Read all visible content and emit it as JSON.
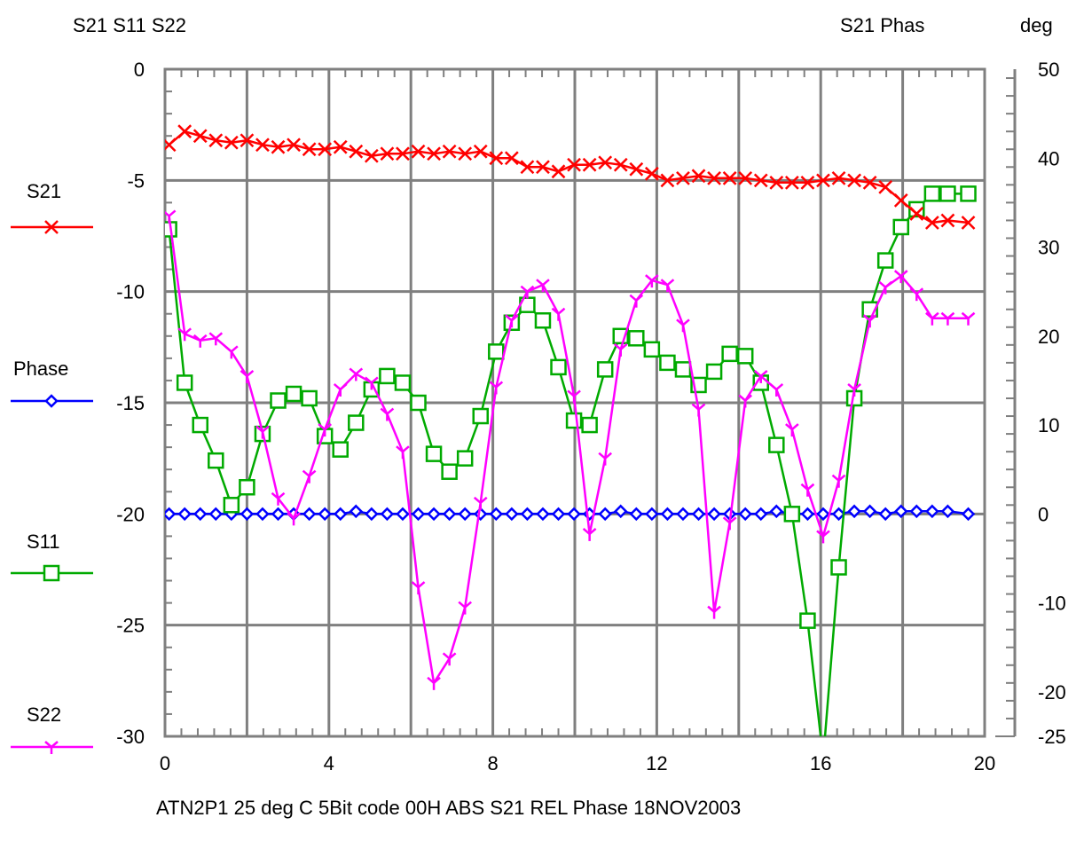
{
  "header": {
    "left_axis_title": "S21 S11 S22",
    "right_axis_title": "S21 Phas",
    "right_axis_unit": "deg"
  },
  "footer": {
    "caption": "ATN2P1 25 deg C  5Bit  code 00H  ABS S21  REL Phase  18NOV2003"
  },
  "chart_data": {
    "type": "line",
    "xlim": [
      0,
      20
    ],
    "x_ticks": [
      "0",
      "4",
      "8",
      "12",
      "16",
      "20"
    ],
    "y_left": {
      "ylim": [
        -30,
        0
      ],
      "ticks": [
        "0",
        "-5",
        "-10",
        "-15",
        "-20",
        "-25",
        "-30"
      ]
    },
    "y_right": {
      "ylim": [
        -25,
        50
      ],
      "ticks": [
        "50",
        "40",
        "30",
        "20",
        "10",
        "0",
        "-10",
        "-20",
        "-25"
      ]
    },
    "grid": true,
    "legend_placement": "left",
    "series": [
      {
        "name": "S21",
        "axis": "left",
        "color": "#ff0000",
        "marker": "x",
        "x": [
          0.1,
          0.48,
          0.86,
          1.24,
          1.62,
          2.0,
          2.38,
          2.76,
          3.14,
          3.52,
          3.9,
          4.28,
          4.66,
          5.04,
          5.42,
          5.8,
          6.18,
          6.56,
          6.94,
          7.32,
          7.7,
          8.08,
          8.46,
          8.84,
          9.22,
          9.6,
          9.98,
          10.36,
          10.74,
          11.12,
          11.5,
          11.88,
          12.26,
          12.64,
          13.02,
          13.4,
          13.78,
          14.16,
          14.54,
          14.92,
          15.3,
          15.68,
          16.06,
          16.44,
          16.82,
          17.2,
          17.58,
          17.96,
          18.34,
          18.72,
          19.1,
          19.6
        ],
        "y": [
          -3.4,
          -2.8,
          -3.0,
          -3.2,
          -3.3,
          -3.2,
          -3.4,
          -3.5,
          -3.4,
          -3.6,
          -3.6,
          -3.5,
          -3.7,
          -3.9,
          -3.8,
          -3.8,
          -3.7,
          -3.8,
          -3.7,
          -3.8,
          -3.7,
          -4.0,
          -4.0,
          -4.4,
          -4.4,
          -4.6,
          -4.3,
          -4.3,
          -4.2,
          -4.3,
          -4.5,
          -4.7,
          -5.0,
          -4.9,
          -4.8,
          -4.9,
          -4.9,
          -4.9,
          -5.0,
          -5.1,
          -5.1,
          -5.1,
          -5.0,
          -4.9,
          -5.0,
          -5.1,
          -5.3,
          -5.9,
          -6.5,
          -6.9,
          -6.8,
          -6.9
        ]
      },
      {
        "name": "Phase",
        "axis": "right",
        "color": "#0000ff",
        "marker": "diamond",
        "x": [
          0.1,
          0.48,
          0.86,
          1.24,
          1.62,
          2.0,
          2.38,
          2.76,
          3.14,
          3.52,
          3.9,
          4.28,
          4.66,
          5.04,
          5.42,
          5.8,
          6.18,
          6.56,
          6.94,
          7.32,
          7.7,
          8.08,
          8.46,
          8.84,
          9.22,
          9.6,
          9.98,
          10.36,
          10.74,
          11.12,
          11.5,
          11.88,
          12.26,
          12.64,
          13.02,
          13.4,
          13.78,
          14.16,
          14.54,
          14.92,
          15.3,
          15.68,
          16.06,
          16.44,
          16.82,
          17.2,
          17.58,
          17.96,
          18.34,
          18.72,
          19.1,
          19.6
        ],
        "y": [
          0,
          0,
          0,
          0,
          0,
          0,
          0,
          0,
          0,
          0,
          0,
          0,
          0.3,
          0,
          0,
          0,
          0,
          0,
          0,
          0,
          0,
          0,
          0,
          0,
          0,
          0,
          0,
          0,
          0,
          0.3,
          0,
          0,
          0,
          0,
          0,
          0,
          0,
          0,
          0,
          0.3,
          0,
          0,
          0,
          0,
          0.3,
          0.3,
          0,
          0.3,
          0.3,
          0.3,
          0.3,
          0
        ]
      },
      {
        "name": "S11",
        "axis": "left",
        "color": "#00aa00",
        "marker": "square",
        "x": [
          0.1,
          0.48,
          0.86,
          1.24,
          1.62,
          2.0,
          2.38,
          2.76,
          3.14,
          3.52,
          3.9,
          4.28,
          4.66,
          5.04,
          5.42,
          5.8,
          6.18,
          6.56,
          6.94,
          7.32,
          7.7,
          8.08,
          8.46,
          8.84,
          9.22,
          9.6,
          9.98,
          10.36,
          10.74,
          11.12,
          11.5,
          11.88,
          12.26,
          12.64,
          13.02,
          13.4,
          13.78,
          14.16,
          14.54,
          14.92,
          15.3,
          15.68,
          16.06,
          16.44,
          16.82,
          17.2,
          17.58,
          17.96,
          18.34,
          18.72,
          19.1,
          19.6
        ],
        "y": [
          -7.2,
          -14.1,
          -16.0,
          -17.6,
          -19.6,
          -18.8,
          -16.4,
          -14.9,
          -14.6,
          -14.8,
          -16.5,
          -17.1,
          -15.9,
          -14.4,
          -13.8,
          -14.1,
          -15.0,
          -17.3,
          -18.1,
          -17.5,
          -15.6,
          -12.7,
          -11.4,
          -10.6,
          -11.3,
          -13.4,
          -15.8,
          -16.0,
          -13.5,
          -12.0,
          -12.1,
          -12.6,
          -13.2,
          -13.5,
          -14.2,
          -13.6,
          -12.8,
          -12.9,
          -14.1,
          -16.9,
          -20.0,
          -24.8,
          -31.0,
          -22.4,
          -14.8,
          -10.8,
          -8.6,
          -7.1,
          -6.3,
          -5.6,
          -5.6,
          -5.6
        ]
      },
      {
        "name": "S22",
        "axis": "left",
        "color": "#ff00ff",
        "marker": "tri",
        "x": [
          0.1,
          0.48,
          0.86,
          1.24,
          1.62,
          2.0,
          2.38,
          2.76,
          3.14,
          3.52,
          3.9,
          4.28,
          4.66,
          5.04,
          5.42,
          5.8,
          6.18,
          6.56,
          6.94,
          7.32,
          7.7,
          8.08,
          8.46,
          8.84,
          9.22,
          9.6,
          9.98,
          10.36,
          10.74,
          11.12,
          11.5,
          11.88,
          12.26,
          12.64,
          13.02,
          13.4,
          13.78,
          14.16,
          14.54,
          14.92,
          15.3,
          15.68,
          16.06,
          16.44,
          16.82,
          17.2,
          17.58,
          17.96,
          18.34,
          18.72,
          19.1,
          19.6
        ],
        "y": [
          -6.6,
          -11.9,
          -12.2,
          -12.1,
          -12.7,
          -13.8,
          -16.3,
          -19.3,
          -20.2,
          -18.3,
          -16.2,
          -14.4,
          -13.7,
          -14.1,
          -15.5,
          -17.2,
          -23.3,
          -27.6,
          -26.5,
          -24.2,
          -19.5,
          -14.3,
          -11.3,
          -10.0,
          -9.7,
          -11.0,
          -14.7,
          -20.9,
          -17.5,
          -12.6,
          -10.4,
          -9.5,
          -9.7,
          -11.5,
          -15.3,
          -24.4,
          -20.4,
          -14.9,
          -13.8,
          -14.4,
          -16.2,
          -18.9,
          -21.0,
          -18.5,
          -14.4,
          -11.3,
          -9.8,
          -9.3,
          -10.1,
          -11.2,
          -11.2,
          -11.2
        ]
      }
    ]
  }
}
